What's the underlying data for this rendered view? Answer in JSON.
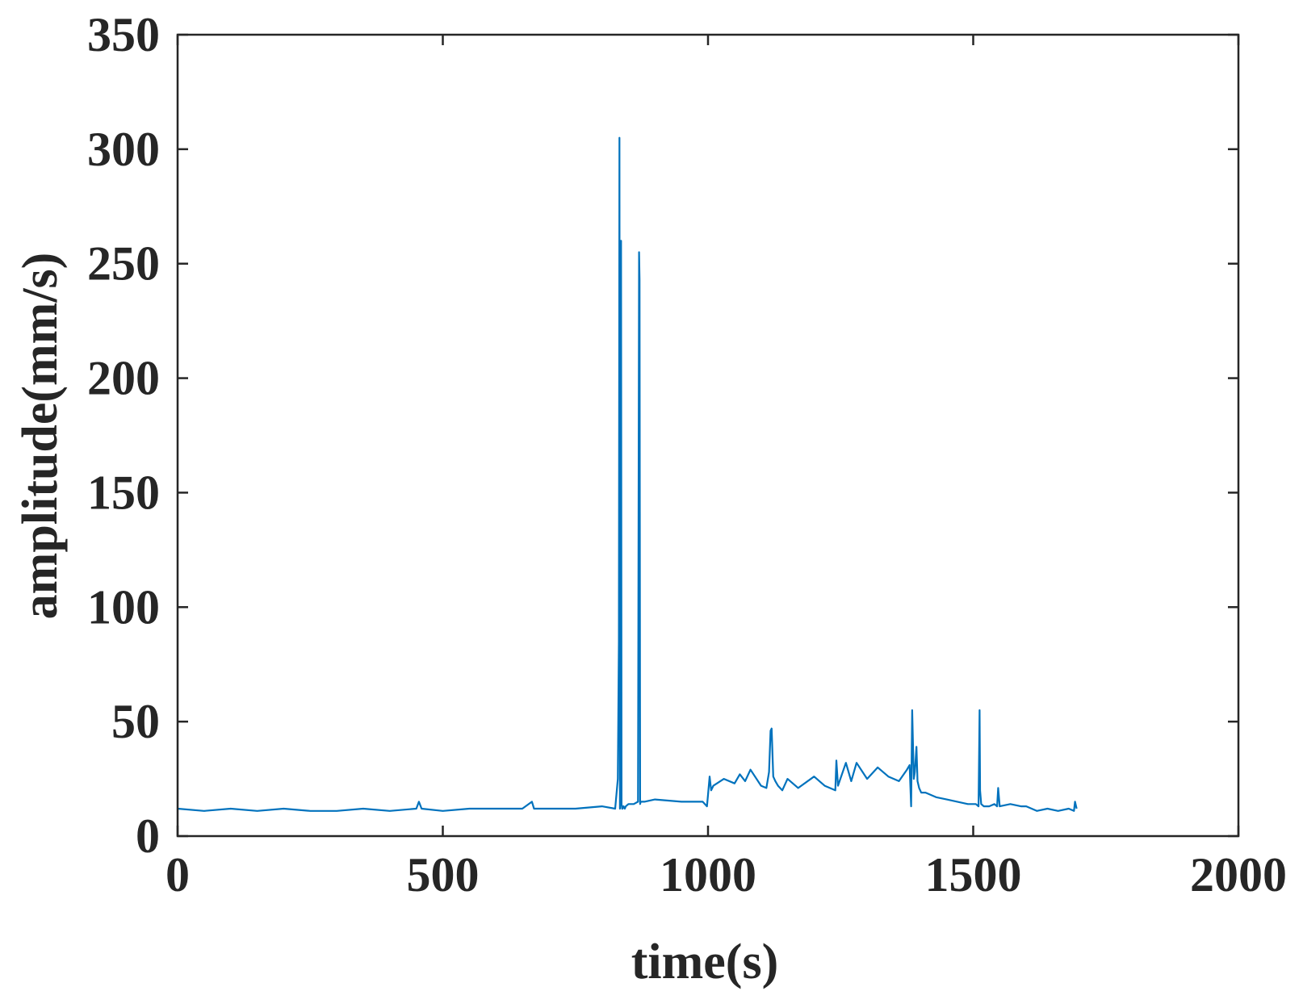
{
  "chart_data": {
    "type": "line",
    "title": "",
    "xlabel": "time(s)",
    "ylabel": "amplitude(mm/s)",
    "xlim": [
      0,
      2000
    ],
    "ylim": [
      0,
      350
    ],
    "xticks": [
      0,
      500,
      1000,
      1500,
      2000
    ],
    "xtick_labels": [
      "0",
      "500",
      "1000",
      "1500",
      "2000"
    ],
    "yticks": [
      0,
      50,
      100,
      150,
      200,
      250,
      300,
      350
    ],
    "ytick_labels": [
      "0",
      "50",
      "100",
      "150",
      "200",
      "250",
      "300",
      "350"
    ],
    "grid": false,
    "legend": "none",
    "line_color": "#0072BD",
    "axis_color": "#262626",
    "series": [
      {
        "x": [
          0,
          50,
          100,
          150,
          200,
          250,
          300,
          350,
          400,
          450,
          455,
          460,
          500,
          550,
          600,
          650,
          668,
          672,
          700,
          750,
          800,
          825,
          830,
          832,
          833,
          834,
          835,
          836,
          837,
          838,
          839,
          840,
          841,
          843,
          845,
          850,
          860,
          868,
          870,
          871,
          872,
          873,
          875,
          880,
          900,
          950,
          990,
          998,
          1000,
          1003,
          1006,
          1010,
          1030,
          1050,
          1060,
          1070,
          1080,
          1100,
          1110,
          1115,
          1118,
          1120,
          1123,
          1127,
          1132,
          1140,
          1150,
          1170,
          1200,
          1220,
          1240,
          1242,
          1245,
          1260,
          1270,
          1280,
          1300,
          1320,
          1340,
          1360,
          1375,
          1380,
          1383,
          1385,
          1388,
          1390,
          1393,
          1395,
          1398,
          1402,
          1410,
          1430,
          1450,
          1470,
          1490,
          1505,
          1510,
          1512,
          1513,
          1515,
          1520,
          1530,
          1540,
          1545,
          1547,
          1550,
          1570,
          1590,
          1600,
          1620,
          1640,
          1660,
          1680,
          1690,
          1692,
          1695
        ],
        "y": [
          12,
          11,
          12,
          11,
          12,
          11,
          11,
          12,
          11,
          12,
          15,
          12,
          11,
          12,
          12,
          12,
          15,
          12,
          12,
          12,
          13,
          12,
          25,
          85,
          305,
          12,
          100,
          260,
          14,
          12,
          12,
          13,
          13,
          12,
          13,
          14,
          14,
          15,
          255,
          243,
          14,
          15,
          15,
          15,
          16,
          15,
          15,
          13,
          18,
          26,
          20,
          22,
          25,
          23,
          27,
          24,
          29,
          22,
          21,
          28,
          46,
          47,
          26,
          24,
          22,
          20,
          25,
          21,
          26,
          22,
          20,
          33,
          22,
          32,
          24,
          32,
          25,
          30,
          26,
          24,
          29,
          31,
          13,
          55,
          25,
          28,
          39,
          24,
          21,
          19,
          19,
          17,
          16,
          15,
          14,
          14,
          13,
          55,
          20,
          14,
          13,
          13,
          14,
          13,
          21,
          13,
          14,
          13,
          13,
          11,
          12,
          11,
          12,
          11,
          15,
          12
        ]
      }
    ]
  }
}
